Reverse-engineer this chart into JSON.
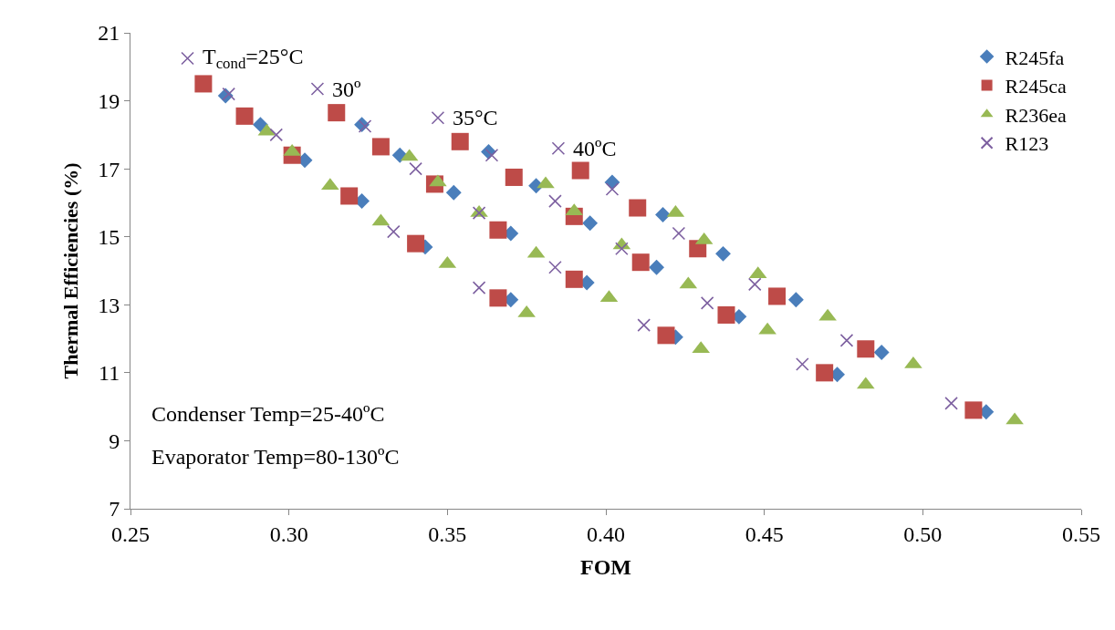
{
  "chart_data": {
    "type": "scatter",
    "xlabel": "FOM",
    "ylabel": "Thermal Efficiencies (%)",
    "xlim": [
      0.25,
      0.55
    ],
    "xticks": [
      0.25,
      {
        "value": 0.3,
        "label": "0.30"
      },
      0.35,
      {
        "value": 0.4,
        "label": "0.40"
      },
      0.45,
      {
        "value": 0.5,
        "label": "0.50"
      },
      0.55
    ],
    "ylim": [
      7,
      21
    ],
    "yticks": [
      7,
      9,
      11,
      13,
      15,
      17,
      19,
      21
    ],
    "legend": "top right",
    "annotations": [
      {
        "text": "T$_{cond}$=25°C",
        "x": 0.268,
        "y": 20.25
      },
      {
        "text": "30º",
        "x": 0.309,
        "y": 19.35
      },
      {
        "text": "35°C",
        "x": 0.347,
        "y": 18.5
      },
      {
        "text": "40ºC",
        "x": 0.385,
        "y": 17.6
      },
      "Condenser Temp=25-40ºC",
      "Evaporator Temp=80-130ºC"
    ],
    "series": [
      {
        "name": "R245fa",
        "color": "#4a7ebb",
        "marker": "diamond",
        "x": [
          0.28,
          0.291,
          0.305,
          0.323,
          0.343,
          0.37,
          0.323,
          0.335,
          0.352,
          0.37,
          0.394,
          0.422,
          0.363,
          0.378,
          0.395,
          0.416,
          0.442,
          0.473,
          0.402,
          0.418,
          0.437,
          0.46,
          0.487,
          0.52
        ],
        "values": [
          19.15,
          18.3,
          17.25,
          16.05,
          14.7,
          13.15,
          18.3,
          17.4,
          16.3,
          15.1,
          13.65,
          12.05,
          17.5,
          16.5,
          15.4,
          14.1,
          12.65,
          10.95,
          16.6,
          15.65,
          14.5,
          13.15,
          11.6,
          9.85
        ]
      },
      {
        "name": "R245ca",
        "color": "#be4b48",
        "marker": "square",
        "x": [
          0.273,
          0.286,
          0.301,
          0.319,
          0.34,
          0.366,
          0.315,
          0.329,
          0.346,
          0.366,
          0.39,
          0.419,
          0.354,
          0.371,
          0.39,
          0.411,
          0.438,
          0.469,
          0.392,
          0.41,
          0.429,
          0.454,
          0.482,
          0.516
        ],
        "values": [
          19.5,
          18.55,
          17.4,
          16.2,
          14.8,
          13.2,
          18.65,
          17.65,
          16.55,
          15.2,
          13.75,
          12.1,
          17.8,
          16.75,
          15.6,
          14.25,
          12.7,
          11.0,
          16.95,
          15.85,
          14.65,
          13.25,
          11.7,
          9.9
        ]
      },
      {
        "name": "R236ea",
        "color": "#98b954",
        "marker": "triangle",
        "x": [
          0.293,
          0.301,
          0.313,
          0.329,
          0.35,
          0.375,
          0.338,
          0.347,
          0.36,
          0.378,
          0.401,
          0.43,
          0.381,
          0.39,
          0.405,
          0.426,
          0.451,
          0.482,
          0.422,
          0.431,
          0.448,
          0.47,
          0.497,
          0.529
        ],
        "values": [
          18.1,
          17.5,
          16.5,
          15.45,
          14.2,
          12.75,
          17.35,
          16.6,
          15.7,
          14.5,
          13.2,
          11.7,
          16.55,
          15.75,
          14.75,
          13.6,
          12.25,
          10.65,
          15.7,
          14.9,
          13.9,
          12.65,
          11.25,
          9.6
        ]
      },
      {
        "name": "R123",
        "color": "#7d60a0",
        "marker": "cross",
        "x": [
          0.268,
          0.281,
          0.296,
          0.333,
          0.36,
          0.309,
          0.324,
          0.34,
          0.36,
          0.384,
          0.412,
          0.347,
          0.364,
          0.384,
          0.405,
          0.432,
          0.462,
          0.385,
          0.402,
          0.423,
          0.447,
          0.476,
          0.509
        ],
        "values": [
          20.25,
          19.2,
          18.0,
          15.15,
          13.5,
          19.35,
          18.25,
          17.0,
          15.7,
          14.1,
          12.4,
          18.5,
          17.4,
          16.05,
          14.65,
          13.05,
          11.25,
          17.6,
          16.4,
          15.1,
          13.6,
          11.95,
          10.1
        ]
      }
    ]
  }
}
